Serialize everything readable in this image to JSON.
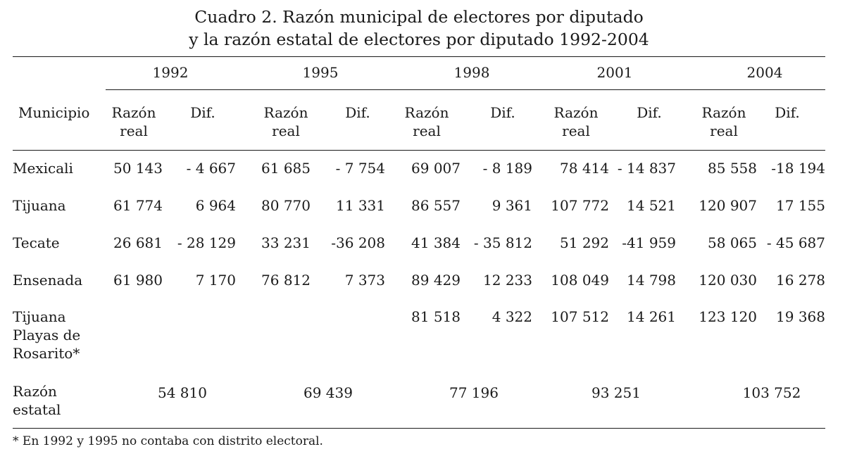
{
  "title_line1": "Cuadro 2. Razón municipal de electores por diputado",
  "title_line2": "y la razón estatal de electores por diputado 1992-2004",
  "header": {
    "municipio": "Municipio",
    "years": [
      "1992",
      "1995",
      "1998",
      "2001",
      "2004"
    ],
    "razon_line1": "Razón",
    "razon_line2": "real",
    "dif": "Dif."
  },
  "rows": [
    {
      "name_lines": [
        "Mexicali"
      ],
      "values": [
        "50  143",
        "- 4 667",
        "61 685",
        "- 7 754",
        "69 007",
        "- 8 189",
        "78 414",
        "- 14 837",
        "85 558",
        "-18 194"
      ]
    },
    {
      "name_lines": [
        "Tijuana"
      ],
      "values": [
        "61 774",
        "6 964",
        "80 770",
        "11 331",
        "86 557",
        "9 361",
        "107 772",
        "14 521",
        "120 907",
        "17 155"
      ]
    },
    {
      "name_lines": [
        "Tecate"
      ],
      "values": [
        "26 681",
        "- 28 129",
        "33 231",
        "-36 208",
        "41 384",
        "- 35 812",
        "51 292",
        "-41 959",
        "58 065",
        "- 45 687"
      ]
    },
    {
      "name_lines": [
        "Ensenada"
      ],
      "values": [
        "61 980",
        "7 170",
        "76 812",
        "7 373",
        "89 429",
        "12 233",
        "108 049",
        "14 798",
        "120 030",
        "16 278"
      ]
    },
    {
      "name_lines": [
        "Tijuana",
        "Playas de",
        "Rosarito*"
      ],
      "values": [
        "",
        "",
        "",
        "",
        "81 518",
        "4 322",
        "107 512",
        "14 261",
        "123 120",
        "19 368"
      ]
    }
  ],
  "estatal": {
    "label_line1": "Razón",
    "label_line2": "estatal",
    "values": [
      "54 810",
      "69 439",
      "77 196",
      "93 251",
      "103 752"
    ]
  },
  "footnote": "* En 1992 y 1995 no contaba con distrito electoral."
}
